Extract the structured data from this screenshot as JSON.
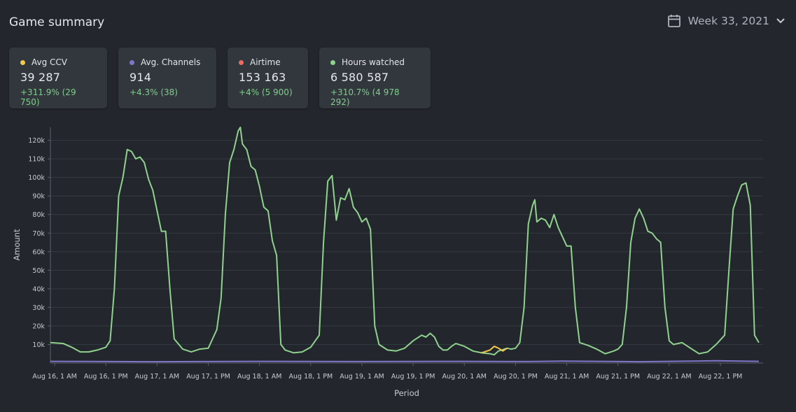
{
  "header": {
    "title": "Game summary",
    "week_label": "Week 33, 2021",
    "calendar_icon": "calendar-icon",
    "dropdown_icon": "chevron-down-icon"
  },
  "cards": [
    {
      "label": "Avg CCV",
      "value": "39 287",
      "delta": "+311.9% (29 750)",
      "color": "#f2c94c"
    },
    {
      "label": "Avg. Channels",
      "value": "914",
      "delta": "+4.3% (38)",
      "color": "#7f76c9"
    },
    {
      "label": "Airtime",
      "value": "153 163",
      "delta": "+4% (5 900)",
      "color": "#eb6b63"
    },
    {
      "label": "Hours watched",
      "value": "6 580 587",
      "delta": "+310.7% (4 978 292)",
      "color": "#8fd18d"
    }
  ],
  "colors": {
    "background": "#23272d",
    "card": "#32373d",
    "delta_positive": "#7fcf8a",
    "grid": "#343a41"
  },
  "chart_data": {
    "type": "line",
    "xlabel": "Period",
    "ylabel": "Amount",
    "ylim": [
      0,
      127000
    ],
    "x_range": [
      "2021-08-16T00:00",
      "2021-08-22T23:00"
    ],
    "y_ticks": [
      {
        "value": 10000,
        "label": "10k"
      },
      {
        "value": 20000,
        "label": "20k"
      },
      {
        "value": 30000,
        "label": "30k"
      },
      {
        "value": 40000,
        "label": "40k"
      },
      {
        "value": 50000,
        "label": "50k"
      },
      {
        "value": 60000,
        "label": "60k"
      },
      {
        "value": 70000,
        "label": "70k"
      },
      {
        "value": 80000,
        "label": "80k"
      },
      {
        "value": 90000,
        "label": "90k"
      },
      {
        "value": 100000,
        "label": "100k"
      },
      {
        "value": 110000,
        "label": "110k"
      },
      {
        "value": 120000,
        "label": "120k"
      }
    ],
    "x_ticks": [
      {
        "time": "2021-08-16T01:00",
        "label": "Aug 16, 1 AM"
      },
      {
        "time": "2021-08-16T13:00",
        "label": "Aug 16, 1 PM"
      },
      {
        "time": "2021-08-17T01:00",
        "label": "Aug 17, 1 AM"
      },
      {
        "time": "2021-08-17T13:00",
        "label": "Aug 17, 1 PM"
      },
      {
        "time": "2021-08-18T01:00",
        "label": "Aug 18, 1 AM"
      },
      {
        "time": "2021-08-18T13:00",
        "label": "Aug 18, 1 PM"
      },
      {
        "time": "2021-08-19T01:00",
        "label": "Aug 19, 1 AM"
      },
      {
        "time": "2021-08-19T13:00",
        "label": "Aug 19, 1 PM"
      },
      {
        "time": "2021-08-20T01:00",
        "label": "Aug 20, 1 AM"
      },
      {
        "time": "2021-08-20T13:00",
        "label": "Aug 20, 1 PM"
      },
      {
        "time": "2021-08-21T01:00",
        "label": "Aug 21, 1 AM"
      },
      {
        "time": "2021-08-21T13:00",
        "label": "Aug 21, 1 PM"
      },
      {
        "time": "2021-08-22T01:00",
        "label": "Aug 22, 1 AM"
      },
      {
        "time": "2021-08-22T13:00",
        "label": "Aug 22, 1 PM"
      }
    ],
    "series": [
      {
        "name": "Hours watched",
        "color": "#8fd18d",
        "points": [
          [
            "2021-08-16T00:00",
            11000
          ],
          [
            "2021-08-16T03:00",
            10500
          ],
          [
            "2021-08-16T05:00",
            8500
          ],
          [
            "2021-08-16T07:00",
            6000
          ],
          [
            "2021-08-16T09:00",
            6000
          ],
          [
            "2021-08-16T11:00",
            7000
          ],
          [
            "2021-08-16T13:00",
            8500
          ],
          [
            "2021-08-16T14:00",
            12000
          ],
          [
            "2021-08-16T15:00",
            40000
          ],
          [
            "2021-08-16T16:00",
            90000
          ],
          [
            "2021-08-16T17:00",
            100000
          ],
          [
            "2021-08-16T18:00",
            115000
          ],
          [
            "2021-08-16T19:00",
            114000
          ],
          [
            "2021-08-16T20:00",
            110000
          ],
          [
            "2021-08-16T21:00",
            111000
          ],
          [
            "2021-08-16T22:00",
            108000
          ],
          [
            "2021-08-16T23:00",
            99000
          ],
          [
            "2021-08-17T00:00",
            93000
          ],
          [
            "2021-08-17T01:00",
            82000
          ],
          [
            "2021-08-17T02:00",
            71000
          ],
          [
            "2021-08-17T03:00",
            71000
          ],
          [
            "2021-08-17T04:00",
            40000
          ],
          [
            "2021-08-17T05:00",
            13000
          ],
          [
            "2021-08-17T07:00",
            7500
          ],
          [
            "2021-08-17T09:00",
            6000
          ],
          [
            "2021-08-17T11:00",
            7500
          ],
          [
            "2021-08-17T13:00",
            8000
          ],
          [
            "2021-08-17T14:00",
            13000
          ],
          [
            "2021-08-17T15:00",
            18000
          ],
          [
            "2021-08-17T16:00",
            35000
          ],
          [
            "2021-08-17T17:00",
            80000
          ],
          [
            "2021-08-17T18:00",
            108000
          ],
          [
            "2021-08-17T19:00",
            115000
          ],
          [
            "2021-08-17T20:00",
            125000
          ],
          [
            "2021-08-17T20:30",
            127000
          ],
          [
            "2021-08-17T21:00",
            118000
          ],
          [
            "2021-08-17T22:00",
            115000
          ],
          [
            "2021-08-17T23:00",
            106000
          ],
          [
            "2021-08-18T00:00",
            104000
          ],
          [
            "2021-08-18T01:00",
            95000
          ],
          [
            "2021-08-18T02:00",
            84000
          ],
          [
            "2021-08-18T03:00",
            82000
          ],
          [
            "2021-08-18T04:00",
            66000
          ],
          [
            "2021-08-18T05:00",
            58000
          ],
          [
            "2021-08-18T06:00",
            10000
          ],
          [
            "2021-08-18T07:00",
            7000
          ],
          [
            "2021-08-18T09:00",
            5500
          ],
          [
            "2021-08-18T11:00",
            6000
          ],
          [
            "2021-08-18T13:00",
            8500
          ],
          [
            "2021-08-18T15:00",
            15000
          ],
          [
            "2021-08-18T16:00",
            65000
          ],
          [
            "2021-08-18T17:00",
            98000
          ],
          [
            "2021-08-18T18:00",
            101000
          ],
          [
            "2021-08-18T19:00",
            77000
          ],
          [
            "2021-08-18T20:00",
            89000
          ],
          [
            "2021-08-18T21:00",
            88000
          ],
          [
            "2021-08-18T22:00",
            94000
          ],
          [
            "2021-08-18T23:00",
            84000
          ],
          [
            "2021-08-19T00:00",
            81000
          ],
          [
            "2021-08-19T01:00",
            76000
          ],
          [
            "2021-08-19T02:00",
            78000
          ],
          [
            "2021-08-19T03:00",
            72000
          ],
          [
            "2021-08-19T04:00",
            20000
          ],
          [
            "2021-08-19T05:00",
            10000
          ],
          [
            "2021-08-19T07:00",
            7000
          ],
          [
            "2021-08-19T09:00",
            6500
          ],
          [
            "2021-08-19T11:00",
            8000
          ],
          [
            "2021-08-19T13:00",
            12000
          ],
          [
            "2021-08-19T15:00",
            15000
          ],
          [
            "2021-08-19T16:00",
            14000
          ],
          [
            "2021-08-19T17:00",
            16000
          ],
          [
            "2021-08-19T18:00",
            14000
          ],
          [
            "2021-08-19T19:00",
            9000
          ],
          [
            "2021-08-19T20:00",
            7000
          ],
          [
            "2021-08-19T21:00",
            7000
          ],
          [
            "2021-08-19T22:00",
            9000
          ],
          [
            "2021-08-19T23:00",
            10500
          ],
          [
            "2021-08-20T01:00",
            9000
          ],
          [
            "2021-08-20T03:00",
            6500
          ],
          [
            "2021-08-20T05:00",
            5500
          ],
          [
            "2021-08-20T07:00",
            5000
          ],
          [
            "2021-08-20T08:00",
            4500
          ],
          [
            "2021-08-20T09:00",
            6500
          ],
          [
            "2021-08-20T11:00",
            8000
          ],
          [
            "2021-08-20T12:00",
            7500
          ],
          [
            "2021-08-20T13:00",
            8000
          ],
          [
            "2021-08-20T14:00",
            11000
          ],
          [
            "2021-08-20T15:00",
            30000
          ],
          [
            "2021-08-20T16:00",
            75000
          ],
          [
            "2021-08-20T17:00",
            85000
          ],
          [
            "2021-08-20T17:30",
            88000
          ],
          [
            "2021-08-20T18:00",
            76000
          ],
          [
            "2021-08-20T19:00",
            78000
          ],
          [
            "2021-08-20T20:00",
            77000
          ],
          [
            "2021-08-20T21:00",
            73000
          ],
          [
            "2021-08-20T22:00",
            80000
          ],
          [
            "2021-08-20T23:00",
            73000
          ],
          [
            "2021-08-21T00:00",
            68000
          ],
          [
            "2021-08-21T01:00",
            63000
          ],
          [
            "2021-08-21T02:00",
            63000
          ],
          [
            "2021-08-21T03:00",
            30000
          ],
          [
            "2021-08-21T04:00",
            11000
          ],
          [
            "2021-08-21T06:00",
            9500
          ],
          [
            "2021-08-21T08:00",
            7500
          ],
          [
            "2021-08-21T10:00",
            5000
          ],
          [
            "2021-08-21T12:00",
            6500
          ],
          [
            "2021-08-21T13:00",
            7500
          ],
          [
            "2021-08-21T14:00",
            10000
          ],
          [
            "2021-08-21T15:00",
            30000
          ],
          [
            "2021-08-21T16:00",
            65000
          ],
          [
            "2021-08-21T17:00",
            78000
          ],
          [
            "2021-08-21T18:00",
            83000
          ],
          [
            "2021-08-21T19:00",
            78000
          ],
          [
            "2021-08-21T20:00",
            71000
          ],
          [
            "2021-08-21T21:00",
            70000
          ],
          [
            "2021-08-21T22:00",
            67000
          ],
          [
            "2021-08-21T23:00",
            65000
          ],
          [
            "2021-08-22T00:00",
            30000
          ],
          [
            "2021-08-22T01:00",
            12000
          ],
          [
            "2021-08-22T02:00",
            10000
          ],
          [
            "2021-08-22T04:00",
            11000
          ],
          [
            "2021-08-22T06:00",
            8000
          ],
          [
            "2021-08-22T08:00",
            5000
          ],
          [
            "2021-08-22T10:00",
            6000
          ],
          [
            "2021-08-22T12:00",
            10000
          ],
          [
            "2021-08-22T14:00",
            15000
          ],
          [
            "2021-08-22T15:00",
            50000
          ],
          [
            "2021-08-22T16:00",
            83000
          ],
          [
            "2021-08-22T17:00",
            90000
          ],
          [
            "2021-08-22T18:00",
            96000
          ],
          [
            "2021-08-22T19:00",
            97000
          ],
          [
            "2021-08-22T20:00",
            85000
          ],
          [
            "2021-08-22T21:00",
            15000
          ],
          [
            "2021-08-22T22:00",
            11000
          ]
        ]
      },
      {
        "name": "Avg CCV",
        "color": "#f2c94c",
        "points": [
          [
            "2021-08-20T05:00",
            5500
          ],
          [
            "2021-08-20T07:00",
            7000
          ],
          [
            "2021-08-20T08:00",
            9000
          ],
          [
            "2021-08-20T09:00",
            8000
          ],
          [
            "2021-08-20T10:00",
            6500
          ],
          [
            "2021-08-20T11:00",
            8000
          ]
        ]
      },
      {
        "name": "Avg. Channels",
        "color": "#7f76c9",
        "points": [
          [
            "2021-08-16T00:00",
            900
          ],
          [
            "2021-08-17T00:00",
            700
          ],
          [
            "2021-08-18T00:00",
            900
          ],
          [
            "2021-08-19T00:00",
            800
          ],
          [
            "2021-08-20T00:00",
            900
          ],
          [
            "2021-08-20T15:00",
            800
          ],
          [
            "2021-08-21T00:00",
            1000
          ],
          [
            "2021-08-21T18:00",
            700
          ],
          [
            "2021-08-22T12:00",
            1200
          ],
          [
            "2021-08-22T22:00",
            900
          ]
        ]
      }
    ]
  }
}
